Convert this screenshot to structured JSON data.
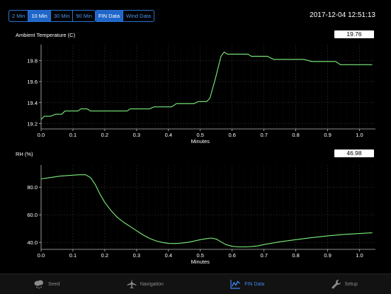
{
  "toolbar": {
    "time_buttons": [
      "2 Min",
      "10 Min",
      "30 Min",
      "90 Min"
    ],
    "time_selected": "10 Min",
    "data_buttons": [
      "FIN Data",
      "Wind Data"
    ],
    "data_selected": "FIN Data"
  },
  "clock": "2017-12-04 12:51:13",
  "charts": {
    "temperature": {
      "title": "Ambient Temperature (C)",
      "current_value": "19.76"
    },
    "rh": {
      "title": "RH (%)",
      "current_value": "46.98"
    }
  },
  "tabs": [
    {
      "label": "Seed",
      "icon": "cloud-seed-icon"
    },
    {
      "label": "Navigation",
      "icon": "airplane-icon"
    },
    {
      "label": "FIN Data",
      "icon": "line-chart-icon",
      "active": true
    },
    {
      "label": "Setup",
      "icon": "wrench-icon"
    }
  ],
  "colors": {
    "accent": "#2a74d6",
    "series": "#7cf07a",
    "active_tab": "#3b86ef"
  },
  "chart_data": [
    {
      "type": "line",
      "title": "Ambient Temperature (C)",
      "xlabel": "Minutes",
      "ylabel": "",
      "xlim": [
        0,
        1.05
      ],
      "ylim": [
        19.15,
        19.95
      ],
      "xticks": [
        0.0,
        0.1,
        0.2,
        0.3,
        0.4,
        0.5,
        0.6,
        0.7,
        0.8,
        0.9,
        1.0
      ],
      "yticks": [
        19.2,
        19.4,
        19.6,
        19.8
      ],
      "grid": true,
      "series": [
        {
          "x": [
            0,
            0.01,
            0.02,
            0.03,
            0.045,
            0.055,
            0.065,
            0.075,
            0.085,
            0.095,
            0.105,
            0.115,
            0.125,
            0.135,
            0.145,
            0.155,
            0.165,
            0.175,
            0.2,
            0.225,
            0.255,
            0.27,
            0.28,
            0.3,
            0.32,
            0.34,
            0.355,
            0.37,
            0.39,
            0.41,
            0.425,
            0.44,
            0.465,
            0.48,
            0.495,
            0.505,
            0.52,
            0.53,
            0.545,
            0.565,
            0.575,
            0.585,
            0.595,
            0.61,
            0.625,
            0.65,
            0.66,
            0.675,
            0.69,
            0.71,
            0.73,
            0.755,
            0.78,
            0.8,
            0.81,
            0.825,
            0.85,
            0.865,
            0.88,
            0.895,
            0.905,
            0.925,
            0.94,
            0.97,
            1.0,
            1.04
          ],
          "y": [
            19.24,
            19.27,
            19.27,
            19.27,
            19.29,
            19.29,
            19.29,
            19.32,
            19.32,
            19.32,
            19.32,
            19.32,
            19.34,
            19.34,
            19.34,
            19.32,
            19.32,
            19.32,
            19.32,
            19.32,
            19.32,
            19.32,
            19.34,
            19.34,
            19.34,
            19.34,
            19.36,
            19.36,
            19.36,
            19.36,
            19.39,
            19.39,
            19.39,
            19.39,
            19.41,
            19.41,
            19.41,
            19.44,
            19.6,
            19.84,
            19.88,
            19.86,
            19.86,
            19.86,
            19.86,
            19.86,
            19.84,
            19.84,
            19.84,
            19.84,
            19.81,
            19.81,
            19.81,
            19.81,
            19.81,
            19.81,
            19.79,
            19.79,
            19.79,
            19.79,
            19.79,
            19.79,
            19.76,
            19.76,
            19.76,
            19.76
          ]
        }
      ]
    },
    {
      "type": "line",
      "title": "RH (%)",
      "xlabel": "Minutes",
      "ylabel": "",
      "xlim": [
        0,
        1.05
      ],
      "ylim": [
        35,
        96
      ],
      "xticks": [
        0.0,
        0.1,
        0.2,
        0.3,
        0.4,
        0.5,
        0.6,
        0.7,
        0.8,
        0.9,
        1.0
      ],
      "yticks": [
        40.0,
        60.0,
        80.0
      ],
      "grid": true,
      "series": [
        {
          "x": [
            0,
            0.03,
            0.06,
            0.09,
            0.12,
            0.14,
            0.155,
            0.17,
            0.185,
            0.2,
            0.22,
            0.24,
            0.26,
            0.28,
            0.3,
            0.32,
            0.34,
            0.36,
            0.38,
            0.4,
            0.42,
            0.44,
            0.46,
            0.48,
            0.5,
            0.52,
            0.535,
            0.55,
            0.565,
            0.58,
            0.6,
            0.62,
            0.64,
            0.66,
            0.68,
            0.7,
            0.75,
            0.8,
            0.85,
            0.9,
            0.95,
            1.0,
            1.04
          ],
          "y": [
            86.0,
            87.0,
            88.0,
            88.5,
            89.0,
            89.0,
            87.0,
            82.0,
            75.0,
            69.0,
            63.0,
            58.0,
            54.5,
            51.5,
            48.5,
            45.5,
            43.0,
            41.2,
            40.0,
            39.3,
            39.2,
            39.5,
            40.0,
            41.0,
            42.0,
            42.8,
            43.2,
            42.5,
            40.5,
            38.5,
            37.2,
            36.8,
            36.8,
            37.0,
            37.5,
            38.5,
            40.5,
            42.0,
            43.5,
            44.8,
            45.8,
            46.5,
            47.0
          ]
        }
      ]
    }
  ]
}
